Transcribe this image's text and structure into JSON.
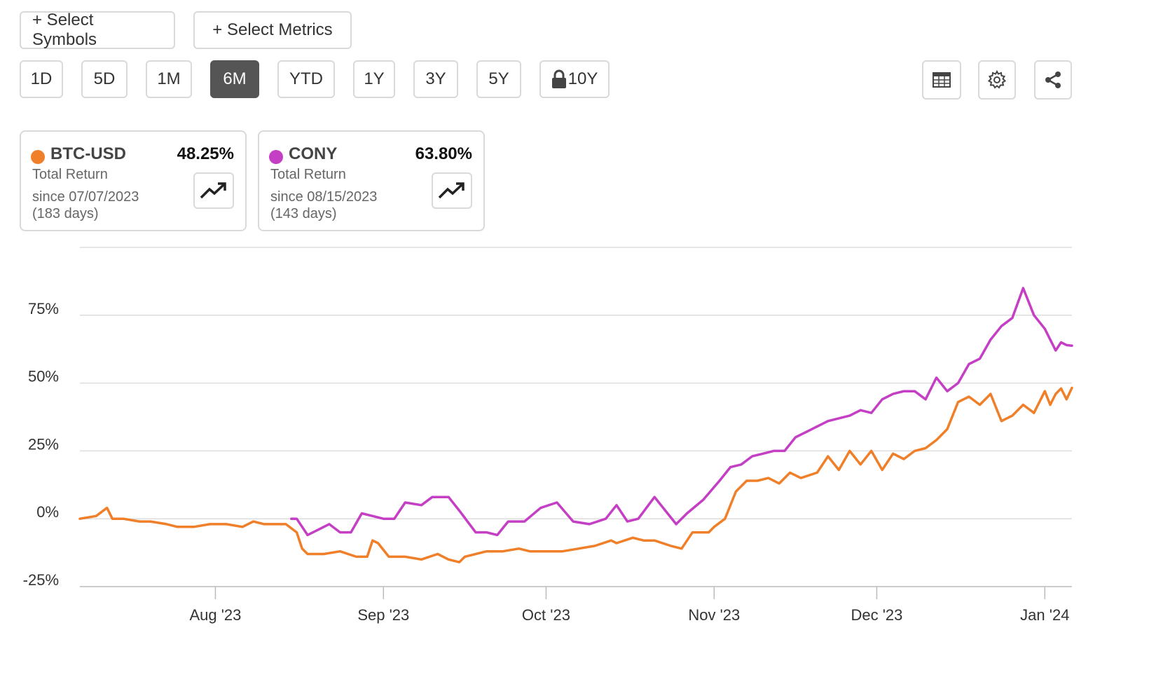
{
  "toolbar": {
    "select_symbols": "+ Select Symbols",
    "select_metrics": "+ Select Metrics"
  },
  "ranges": [
    "1D",
    "5D",
    "1M",
    "6M",
    "YTD",
    "1Y",
    "3Y",
    "5Y",
    "10Y"
  ],
  "active_range": "6M",
  "icons": [
    "table-icon",
    "gear-icon",
    "share-icon",
    "lock-icon",
    "trending-up-icon"
  ],
  "cards": [
    {
      "symbol": "BTC-USD",
      "color": "#f07f2a",
      "return": "48.25%",
      "label": "Total Return",
      "since": "since 07/07/2023",
      "days": "(183 days)"
    },
    {
      "symbol": "CONY",
      "color": "#c43fc4",
      "return": "63.80%",
      "label": "Total Return",
      "since": "since 08/15/2023",
      "days": "(143 days)"
    }
  ],
  "chart_data": {
    "type": "line",
    "title": "",
    "xlabel": "",
    "ylabel": "",
    "ylim": [
      -25,
      100
    ],
    "y_ticks": [
      "75%",
      "50%",
      "25%",
      "0%",
      "-25%"
    ],
    "y_tick_values": [
      75,
      50,
      25,
      0,
      -25
    ],
    "x_range": [
      "2023-07-07",
      "2024-01-06"
    ],
    "x_ticks": [
      {
        "label": "Aug '23",
        "date": "2023-08-01"
      },
      {
        "label": "Sep '23",
        "date": "2023-09-01"
      },
      {
        "label": "Oct '23",
        "date": "2023-10-01"
      },
      {
        "label": "Nov '23",
        "date": "2023-11-01"
      },
      {
        "label": "Dec '23",
        "date": "2023-12-01"
      },
      {
        "label": "Jan '24",
        "date": "2024-01-01"
      }
    ],
    "grid": true,
    "series": [
      {
        "name": "BTC-USD",
        "color": "#f07f2a",
        "points": [
          [
            "2023-07-07",
            0
          ],
          [
            "2023-07-10",
            1
          ],
          [
            "2023-07-12",
            4
          ],
          [
            "2023-07-13",
            0
          ],
          [
            "2023-07-15",
            0
          ],
          [
            "2023-07-18",
            -1
          ],
          [
            "2023-07-20",
            -1
          ],
          [
            "2023-07-23",
            -2
          ],
          [
            "2023-07-25",
            -3
          ],
          [
            "2023-07-28",
            -3
          ],
          [
            "2023-07-31",
            -2
          ],
          [
            "2023-08-03",
            -2
          ],
          [
            "2023-08-06",
            -3
          ],
          [
            "2023-08-08",
            -1
          ],
          [
            "2023-08-10",
            -2
          ],
          [
            "2023-08-14",
            -2
          ],
          [
            "2023-08-16",
            -5
          ],
          [
            "2023-08-17",
            -11
          ],
          [
            "2023-08-18",
            -13
          ],
          [
            "2023-08-21",
            -13
          ],
          [
            "2023-08-24",
            -12
          ],
          [
            "2023-08-27",
            -14
          ],
          [
            "2023-08-29",
            -14
          ],
          [
            "2023-08-30",
            -8
          ],
          [
            "2023-08-31",
            -9
          ],
          [
            "2023-09-02",
            -14
          ],
          [
            "2023-09-05",
            -14
          ],
          [
            "2023-09-08",
            -15
          ],
          [
            "2023-09-11",
            -13
          ],
          [
            "2023-09-13",
            -15
          ],
          [
            "2023-09-15",
            -16
          ],
          [
            "2023-09-16",
            -14
          ],
          [
            "2023-09-20",
            -12
          ],
          [
            "2023-09-23",
            -12
          ],
          [
            "2023-09-26",
            -11
          ],
          [
            "2023-09-28",
            -12
          ],
          [
            "2023-10-01",
            -12
          ],
          [
            "2023-10-04",
            -12
          ],
          [
            "2023-10-07",
            -11
          ],
          [
            "2023-10-10",
            -10
          ],
          [
            "2023-10-13",
            -8
          ],
          [
            "2023-10-14",
            -9
          ],
          [
            "2023-10-17",
            -7
          ],
          [
            "2023-10-19",
            -8
          ],
          [
            "2023-10-21",
            -8
          ],
          [
            "2023-10-24",
            -10
          ],
          [
            "2023-10-26",
            -11
          ],
          [
            "2023-10-28",
            -5
          ],
          [
            "2023-10-31",
            -5
          ],
          [
            "2023-11-01",
            -3
          ],
          [
            "2023-11-03",
            0
          ],
          [
            "2023-11-05",
            10
          ],
          [
            "2023-11-07",
            14
          ],
          [
            "2023-11-09",
            14
          ],
          [
            "2023-11-11",
            15
          ],
          [
            "2023-11-13",
            13
          ],
          [
            "2023-11-15",
            17
          ],
          [
            "2023-11-17",
            15
          ],
          [
            "2023-11-20",
            17
          ],
          [
            "2023-11-22",
            23
          ],
          [
            "2023-11-24",
            18
          ],
          [
            "2023-11-26",
            25
          ],
          [
            "2023-11-28",
            20
          ],
          [
            "2023-11-30",
            25
          ],
          [
            "2023-12-02",
            18
          ],
          [
            "2023-12-04",
            24
          ],
          [
            "2023-12-06",
            22
          ],
          [
            "2023-12-08",
            25
          ],
          [
            "2023-12-10",
            26
          ],
          [
            "2023-12-12",
            29
          ],
          [
            "2023-12-14",
            33
          ],
          [
            "2023-12-16",
            43
          ],
          [
            "2023-12-18",
            45
          ],
          [
            "2023-12-20",
            42
          ],
          [
            "2023-12-22",
            46
          ],
          [
            "2023-12-24",
            36
          ],
          [
            "2023-12-26",
            38
          ],
          [
            "2023-12-28",
            42
          ],
          [
            "2023-12-30",
            39
          ],
          [
            "2024-01-01",
            47
          ],
          [
            "2024-01-02",
            42
          ],
          [
            "2024-01-03",
            46
          ],
          [
            "2024-01-04",
            48
          ],
          [
            "2024-01-05",
            44
          ],
          [
            "2024-01-06",
            48.25
          ]
        ]
      },
      {
        "name": "CONY",
        "color": "#c43fc4",
        "points": [
          [
            "2023-08-15",
            0
          ],
          [
            "2023-08-16",
            0
          ],
          [
            "2023-08-18",
            -6
          ],
          [
            "2023-08-20",
            -4
          ],
          [
            "2023-08-22",
            -2
          ],
          [
            "2023-08-24",
            -5
          ],
          [
            "2023-08-26",
            -5
          ],
          [
            "2023-08-28",
            2
          ],
          [
            "2023-08-30",
            1
          ],
          [
            "2023-09-01",
            0
          ],
          [
            "2023-09-03",
            0
          ],
          [
            "2023-09-05",
            6
          ],
          [
            "2023-09-08",
            5
          ],
          [
            "2023-09-10",
            8
          ],
          [
            "2023-09-13",
            8
          ],
          [
            "2023-09-15",
            3
          ],
          [
            "2023-09-18",
            -5
          ],
          [
            "2023-09-20",
            -5
          ],
          [
            "2023-09-22",
            -6
          ],
          [
            "2023-09-24",
            -1
          ],
          [
            "2023-09-27",
            -1
          ],
          [
            "2023-09-30",
            4
          ],
          [
            "2023-10-03",
            6
          ],
          [
            "2023-10-06",
            -1
          ],
          [
            "2023-10-09",
            -2
          ],
          [
            "2023-10-12",
            0
          ],
          [
            "2023-10-14",
            5
          ],
          [
            "2023-10-16",
            -1
          ],
          [
            "2023-10-18",
            0
          ],
          [
            "2023-10-21",
            8
          ],
          [
            "2023-10-23",
            3
          ],
          [
            "2023-10-25",
            -2
          ],
          [
            "2023-10-27",
            2
          ],
          [
            "2023-10-30",
            7
          ],
          [
            "2023-11-02",
            14
          ],
          [
            "2023-11-04",
            19
          ],
          [
            "2023-11-06",
            20
          ],
          [
            "2023-11-08",
            23
          ],
          [
            "2023-11-10",
            24
          ],
          [
            "2023-11-12",
            25
          ],
          [
            "2023-11-14",
            25
          ],
          [
            "2023-11-16",
            30
          ],
          [
            "2023-11-18",
            32
          ],
          [
            "2023-11-20",
            34
          ],
          [
            "2023-11-22",
            36
          ],
          [
            "2023-11-24",
            37
          ],
          [
            "2023-11-26",
            38
          ],
          [
            "2023-11-28",
            40
          ],
          [
            "2023-11-30",
            39
          ],
          [
            "2023-12-02",
            44
          ],
          [
            "2023-12-04",
            46
          ],
          [
            "2023-12-06",
            47
          ],
          [
            "2023-12-08",
            47
          ],
          [
            "2023-12-10",
            44
          ],
          [
            "2023-12-12",
            52
          ],
          [
            "2023-12-14",
            47
          ],
          [
            "2023-12-16",
            50
          ],
          [
            "2023-12-18",
            57
          ],
          [
            "2023-12-20",
            59
          ],
          [
            "2023-12-22",
            66
          ],
          [
            "2023-12-24",
            71
          ],
          [
            "2023-12-26",
            74
          ],
          [
            "2023-12-28",
            85
          ],
          [
            "2023-12-30",
            75
          ],
          [
            "2024-01-01",
            70
          ],
          [
            "2024-01-03",
            62
          ],
          [
            "2024-01-04",
            65
          ],
          [
            "2024-01-05",
            64
          ],
          [
            "2024-01-06",
            63.8
          ]
        ]
      }
    ]
  }
}
